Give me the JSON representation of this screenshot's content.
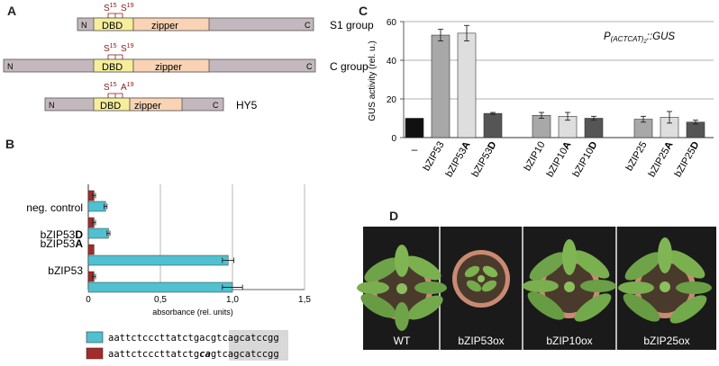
{
  "figure": {
    "panels": {
      "A": "A",
      "B": "B",
      "C": "C",
      "D": "D"
    },
    "panelA": {
      "domains": [
        {
          "group": "S1 group",
          "n": "N",
          "c": "C",
          "dbd": "DBD",
          "zipper": "zipper",
          "site1": "S",
          "sup1": "15",
          "site2": "S",
          "sup2": "19"
        },
        {
          "group": "C group",
          "n": "N",
          "c": "C",
          "dbd": "DBD",
          "zipper": "zipper",
          "site1": "S",
          "sup1": "15",
          "site2": "S",
          "sup2": "19"
        },
        {
          "group": "HY5",
          "n": "N",
          "c": "C",
          "dbd": "DBD",
          "zipper": "zipper",
          "site1": "S",
          "sup1": "15",
          "site2": "A",
          "sup2": "19"
        }
      ]
    },
    "panelB": {
      "xlabel": "absorbance (rel. units)",
      "categories": [
        {
          "pre": "neg. control",
          "bold": ""
        },
        {
          "pre": "bZIP53",
          "bold": "D"
        },
        {
          "pre": "bZIP53",
          "bold": "A"
        },
        {
          "pre": "bZIP53",
          "bold": ""
        }
      ],
      "xticks": [
        "0",
        "0,5",
        "1,0",
        "1,5"
      ],
      "sequences": [
        {
          "a": "aattctcccttatctg",
          "b": "ac",
          "c": "gtc",
          "d": "agcatccgg"
        },
        {
          "a": "aattctcccttatctg",
          "b": "ca",
          "c": "gtc",
          "d": "agcatccgg"
        }
      ]
    },
    "panelC": {
      "ylabel": "GUS activity (rel. u.)",
      "promoter": {
        "p": "P",
        "sub": "(ACTCAT)",
        "subn": "2",
        "rest": "::GUS"
      },
      "yticks": [
        "0",
        "20",
        "40",
        "60"
      ],
      "categories": [
        {
          "pre": "–",
          "bold": ""
        },
        {
          "pre": "bZIP53",
          "bold": ""
        },
        {
          "pre": "bZIP53",
          "bold": "A"
        },
        {
          "pre": "bZIP53",
          "bold": "D"
        },
        {
          "pre": "bZIP10",
          "bold": ""
        },
        {
          "pre": "bZIP10",
          "bold": "A"
        },
        {
          "pre": "bZIP10",
          "bold": "D"
        },
        {
          "pre": "bZIP25",
          "bold": ""
        },
        {
          "pre": "bZIP25",
          "bold": "A"
        },
        {
          "pre": "bZIP25",
          "bold": "D"
        }
      ]
    },
    "panelD": {
      "labels": [
        "WT",
        "bZIP53ox",
        "bZIP10ox",
        "bZIP25ox"
      ]
    }
  },
  "chart_data": [
    {
      "type": "bar",
      "orientation": "horizontal",
      "categories": [
        "neg. control",
        "bZIP53D",
        "bZIP53A",
        "bZIP53"
      ],
      "series": [
        {
          "color": "#a52a2a",
          "values": [
            0.04,
            0.04,
            0.04,
            0.04
          ],
          "errors": [
            0.01,
            0.01,
            0.0,
            0.01
          ]
        },
        {
          "color": "#4fc1d0",
          "values": [
            0.12,
            0.14,
            0.97,
            1.0
          ],
          "errors": [
            0.01,
            0.01,
            0.04,
            0.07
          ]
        }
      ],
      "xlim": [
        0,
        1.5
      ],
      "xlabel": "absorbance (rel. units)",
      "grid": "vertical"
    },
    {
      "type": "bar",
      "categories": [
        "–",
        "bZIP53",
        "bZIP53A",
        "bZIP53D",
        "bZIP10",
        "bZIP10A",
        "bZIP10D",
        "bZIP25",
        "bZIP25A",
        "bZIP25D"
      ],
      "values": [
        10,
        53,
        54,
        12.5,
        11.5,
        11,
        10,
        9.5,
        10.5,
        8
      ],
      "errors": [
        0,
        3,
        4,
        0.5,
        1.5,
        2,
        1,
        1.5,
        3,
        1
      ],
      "colors": [
        "#111111",
        "#a8a8a8",
        "#dedede",
        "#555555",
        "#a8a8a8",
        "#dedede",
        "#555555",
        "#a8a8a8",
        "#dedede",
        "#555555"
      ],
      "ylim": [
        0,
        60
      ],
      "ylabel": "GUS activity (rel. u.)",
      "grid": "horizontal"
    }
  ]
}
